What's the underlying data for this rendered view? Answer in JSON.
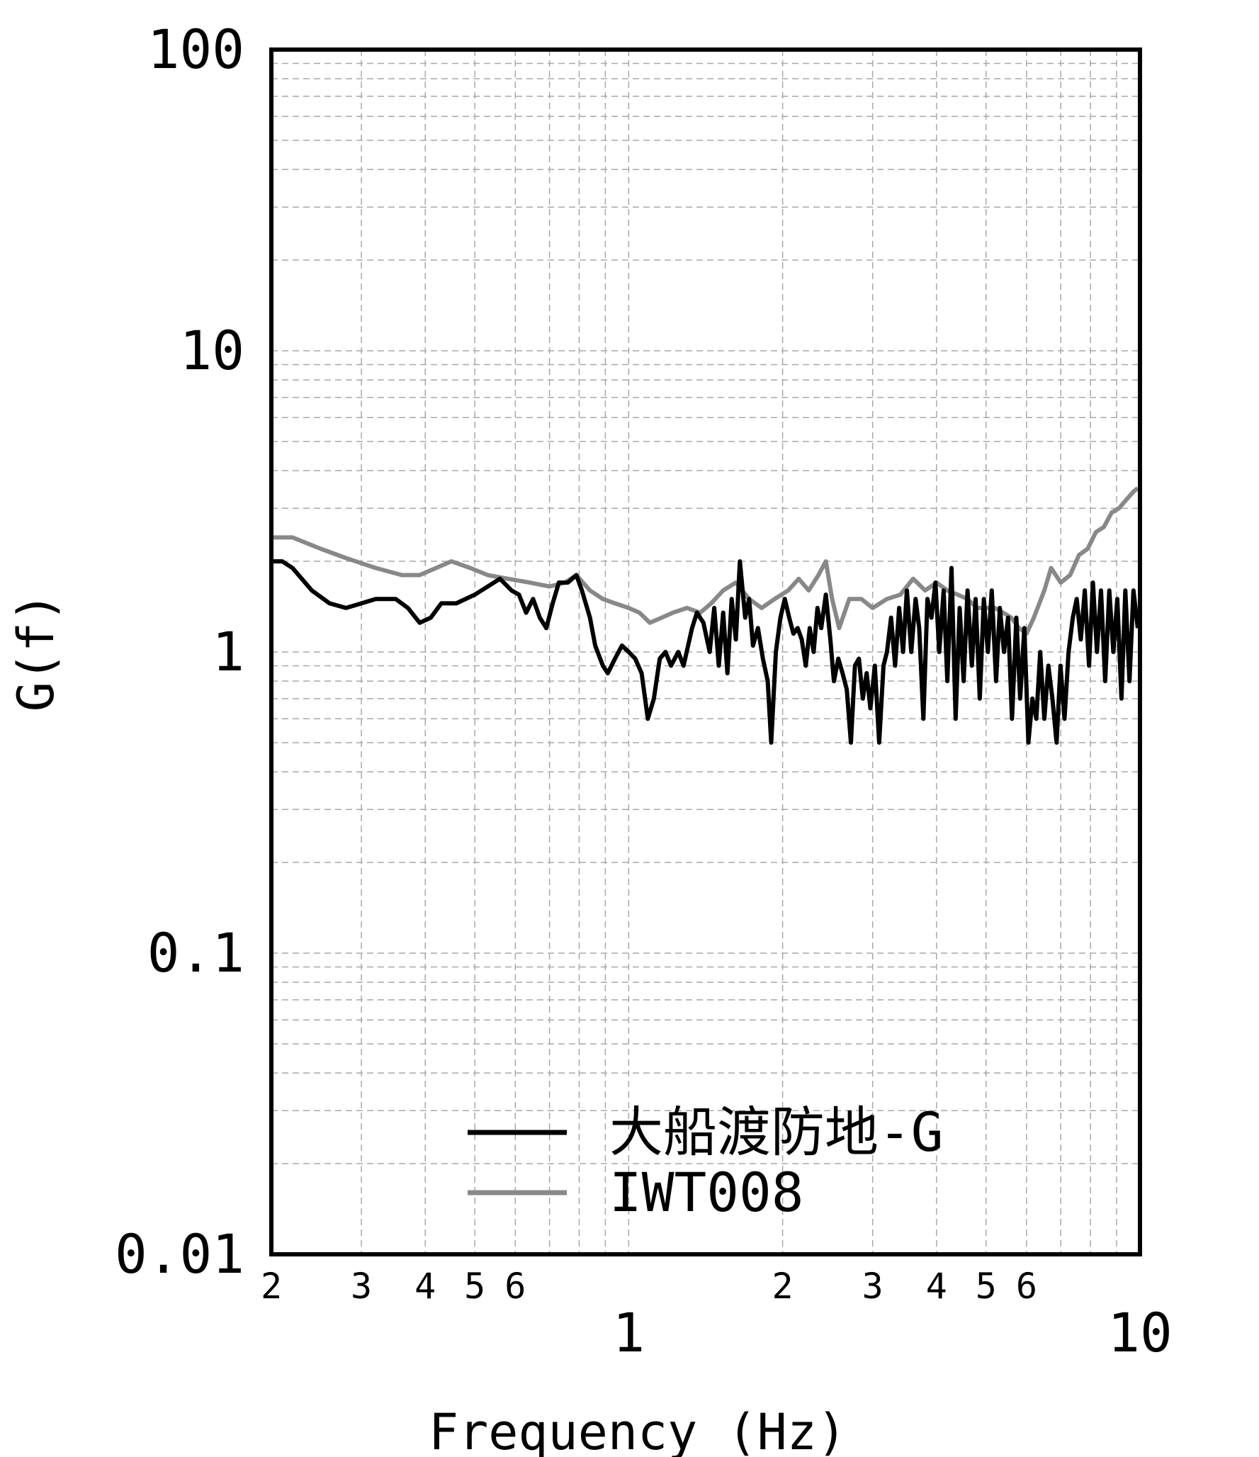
{
  "chart_data": {
    "type": "line",
    "title": "",
    "xlabel": "Frequency (Hz)",
    "ylabel": "G(f)",
    "xscale": "log",
    "yscale": "log",
    "xlim": [
      0.2,
      10
    ],
    "ylim": [
      0.01,
      100
    ],
    "grid": true,
    "legend_position": "bottom-center",
    "y_ticks": [
      "100",
      "10",
      "1",
      "0.1",
      "0.01"
    ],
    "x_major_ticks": [
      "1",
      "10"
    ],
    "x_minor_ticks": [
      "2",
      "3",
      "4",
      "5",
      "6",
      "2",
      "3",
      "4",
      "5",
      "6"
    ],
    "series": [
      {
        "name": "大船渡防地-G",
        "color": "#000000",
        "points": [
          [
            0.2,
            2.0
          ],
          [
            0.21,
            2.0
          ],
          [
            0.22,
            1.9
          ],
          [
            0.24,
            1.6
          ],
          [
            0.26,
            1.45
          ],
          [
            0.28,
            1.4
          ],
          [
            0.3,
            1.45
          ],
          [
            0.32,
            1.5
          ],
          [
            0.35,
            1.5
          ],
          [
            0.37,
            1.4
          ],
          [
            0.39,
            1.25
          ],
          [
            0.41,
            1.3
          ],
          [
            0.43,
            1.45
          ],
          [
            0.46,
            1.45
          ],
          [
            0.5,
            1.55
          ],
          [
            0.53,
            1.65
          ],
          [
            0.56,
            1.75
          ],
          [
            0.59,
            1.6
          ],
          [
            0.61,
            1.55
          ],
          [
            0.63,
            1.35
          ],
          [
            0.65,
            1.5
          ],
          [
            0.67,
            1.3
          ],
          [
            0.69,
            1.2
          ],
          [
            0.71,
            1.45
          ],
          [
            0.73,
            1.7
          ],
          [
            0.76,
            1.7
          ],
          [
            0.79,
            1.8
          ],
          [
            0.81,
            1.6
          ],
          [
            0.84,
            1.3
          ],
          [
            0.86,
            1.05
          ],
          [
            0.89,
            0.9
          ],
          [
            0.91,
            0.85
          ],
          [
            0.94,
            0.95
          ],
          [
            0.97,
            1.05
          ],
          [
            1.0,
            1.0
          ],
          [
            1.03,
            0.95
          ],
          [
            1.06,
            0.85
          ],
          [
            1.09,
            0.6
          ],
          [
            1.12,
            0.7
          ],
          [
            1.15,
            0.95
          ],
          [
            1.18,
            1.0
          ],
          [
            1.21,
            0.9
          ],
          [
            1.25,
            1.0
          ],
          [
            1.28,
            0.9
          ],
          [
            1.33,
            1.2
          ],
          [
            1.36,
            1.35
          ],
          [
            1.4,
            1.25
          ],
          [
            1.44,
            1.0
          ],
          [
            1.47,
            1.4
          ],
          [
            1.5,
            0.9
          ],
          [
            1.53,
            1.35
          ],
          [
            1.56,
            0.85
          ],
          [
            1.59,
            1.5
          ],
          [
            1.62,
            1.1
          ],
          [
            1.65,
            2.0
          ],
          [
            1.69,
            1.3
          ],
          [
            1.72,
            1.5
          ],
          [
            1.75,
            1.05
          ],
          [
            1.79,
            1.2
          ],
          [
            1.83,
            0.95
          ],
          [
            1.87,
            0.8
          ],
          [
            1.9,
            0.5
          ],
          [
            1.94,
            1.0
          ],
          [
            1.98,
            1.3
          ],
          [
            2.02,
            1.5
          ],
          [
            2.06,
            1.3
          ],
          [
            2.1,
            1.15
          ],
          [
            2.14,
            1.2
          ],
          [
            2.18,
            1.1
          ],
          [
            2.22,
            0.9
          ],
          [
            2.26,
            1.2
          ],
          [
            2.3,
            1.0
          ],
          [
            2.34,
            1.4
          ],
          [
            2.38,
            1.2
          ],
          [
            2.43,
            1.55
          ],
          [
            2.48,
            1.1
          ],
          [
            2.52,
            0.8
          ],
          [
            2.57,
            0.95
          ],
          [
            2.62,
            0.85
          ],
          [
            2.67,
            0.75
          ],
          [
            2.72,
            0.5
          ],
          [
            2.77,
            0.9
          ],
          [
            2.82,
            0.95
          ],
          [
            2.87,
            0.7
          ],
          [
            2.92,
            0.85
          ],
          [
            2.97,
            0.65
          ],
          [
            3.03,
            0.9
          ],
          [
            3.09,
            0.5
          ],
          [
            3.15,
            0.9
          ],
          [
            3.2,
            1.0
          ],
          [
            3.26,
            1.3
          ],
          [
            3.32,
            0.9
          ],
          [
            3.38,
            1.4
          ],
          [
            3.44,
            1.0
          ],
          [
            3.5,
            1.6
          ],
          [
            3.57,
            1.0
          ],
          [
            3.64,
            1.5
          ],
          [
            3.7,
            1.2
          ],
          [
            3.77,
            0.6
          ],
          [
            3.84,
            1.5
          ],
          [
            3.91,
            1.3
          ],
          [
            3.98,
            1.7
          ],
          [
            4.05,
            1.0
          ],
          [
            4.13,
            1.6
          ],
          [
            4.2,
            0.8
          ],
          [
            4.28,
            1.9
          ],
          [
            4.36,
            0.6
          ],
          [
            4.44,
            1.4
          ],
          [
            4.52,
            0.8
          ],
          [
            4.6,
            1.6
          ],
          [
            4.69,
            0.9
          ],
          [
            4.77,
            1.5
          ],
          [
            4.86,
            0.7
          ],
          [
            4.95,
            1.5
          ],
          [
            5.04,
            1.0
          ],
          [
            5.13,
            1.6
          ],
          [
            5.23,
            0.8
          ],
          [
            5.32,
            1.4
          ],
          [
            5.42,
            1.0
          ],
          [
            5.52,
            1.3
          ],
          [
            5.62,
            0.6
          ],
          [
            5.73,
            1.3
          ],
          [
            5.83,
            0.7
          ],
          [
            5.94,
            1.2
          ],
          [
            6.05,
            0.5
          ],
          [
            6.16,
            0.7
          ],
          [
            6.27,
            0.6
          ],
          [
            6.38,
            1.0
          ],
          [
            6.5,
            0.6
          ],
          [
            6.62,
            0.9
          ],
          [
            6.74,
            0.7
          ],
          [
            6.87,
            0.5
          ],
          [
            6.99,
            0.9
          ],
          [
            7.12,
            0.6
          ],
          [
            7.25,
            1.0
          ],
          [
            7.39,
            1.3
          ],
          [
            7.52,
            1.5
          ],
          [
            7.66,
            1.1
          ],
          [
            7.8,
            1.6
          ],
          [
            7.95,
            0.9
          ],
          [
            8.09,
            1.7
          ],
          [
            8.24,
            1.0
          ],
          [
            8.39,
            1.6
          ],
          [
            8.55,
            0.8
          ],
          [
            8.71,
            1.6
          ],
          [
            8.87,
            1.0
          ],
          [
            9.03,
            1.5
          ],
          [
            9.2,
            0.7
          ],
          [
            9.36,
            1.6
          ],
          [
            9.54,
            0.8
          ],
          [
            9.71,
            1.6
          ],
          [
            9.9,
            1.2
          ]
        ]
      },
      {
        "name": "IWT008",
        "color": "#888888",
        "points": [
          [
            0.2,
            2.4
          ],
          [
            0.22,
            2.4
          ],
          [
            0.25,
            2.2
          ],
          [
            0.28,
            2.05
          ],
          [
            0.32,
            1.9
          ],
          [
            0.36,
            1.8
          ],
          [
            0.39,
            1.8
          ],
          [
            0.42,
            1.9
          ],
          [
            0.45,
            2.0
          ],
          [
            0.49,
            1.9
          ],
          [
            0.53,
            1.8
          ],
          [
            0.58,
            1.75
          ],
          [
            0.64,
            1.7
          ],
          [
            0.7,
            1.65
          ],
          [
            0.75,
            1.7
          ],
          [
            0.79,
            1.8
          ],
          [
            0.84,
            1.6
          ],
          [
            0.89,
            1.5
          ],
          [
            0.94,
            1.45
          ],
          [
            1.0,
            1.4
          ],
          [
            1.05,
            1.35
          ],
          [
            1.1,
            1.25
          ],
          [
            1.16,
            1.3
          ],
          [
            1.22,
            1.35
          ],
          [
            1.3,
            1.4
          ],
          [
            1.38,
            1.35
          ],
          [
            1.45,
            1.45
          ],
          [
            1.53,
            1.6
          ],
          [
            1.62,
            1.7
          ],
          [
            1.72,
            1.5
          ],
          [
            1.82,
            1.4
          ],
          [
            1.93,
            1.5
          ],
          [
            2.05,
            1.6
          ],
          [
            2.15,
            1.75
          ],
          [
            2.25,
            1.6
          ],
          [
            2.35,
            1.8
          ],
          [
            2.43,
            2.0
          ],
          [
            2.5,
            1.5
          ],
          [
            2.58,
            1.2
          ],
          [
            2.7,
            1.5
          ],
          [
            2.85,
            1.5
          ],
          [
            3.0,
            1.4
          ],
          [
            3.2,
            1.5
          ],
          [
            3.4,
            1.55
          ],
          [
            3.6,
            1.75
          ],
          [
            3.8,
            1.6
          ],
          [
            4.0,
            1.7
          ],
          [
            4.2,
            1.6
          ],
          [
            4.4,
            1.55
          ],
          [
            4.6,
            1.5
          ],
          [
            4.8,
            1.4
          ],
          [
            5.0,
            1.4
          ],
          [
            5.2,
            1.4
          ],
          [
            5.4,
            1.35
          ],
          [
            5.6,
            1.3
          ],
          [
            5.8,
            1.2
          ],
          [
            6.0,
            1.15
          ],
          [
            6.2,
            1.3
          ],
          [
            6.5,
            1.6
          ],
          [
            6.7,
            1.9
          ],
          [
            7.0,
            1.7
          ],
          [
            7.3,
            1.8
          ],
          [
            7.6,
            2.1
          ],
          [
            7.9,
            2.2
          ],
          [
            8.2,
            2.5
          ],
          [
            8.5,
            2.6
          ],
          [
            8.8,
            2.9
          ],
          [
            9.1,
            3.0
          ],
          [
            9.4,
            3.2
          ],
          [
            9.7,
            3.4
          ],
          [
            9.9,
            3.5
          ]
        ]
      }
    ]
  }
}
